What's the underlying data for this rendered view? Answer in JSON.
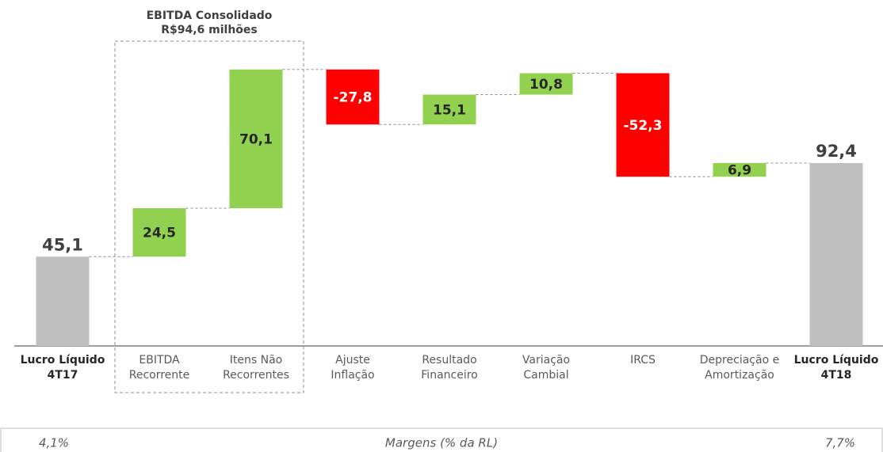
{
  "chart_data": {
    "type": "waterfall",
    "categories": [
      [
        "Lucro Líquido",
        "4T17"
      ],
      [
        "EBITDA",
        "Recorrente"
      ],
      [
        "Itens Não",
        "Recorrentes"
      ],
      [
        "Ajuste",
        "Inflação"
      ],
      [
        "Resultado",
        "Financeiro"
      ],
      [
        "Variação",
        "Cambial"
      ],
      [
        "IRCS"
      ],
      [
        "Depreciação e",
        "Amortização"
      ],
      [
        "Lucro Líquido",
        "4T18"
      ]
    ],
    "values": [
      45.1,
      24.5,
      70.1,
      -27.8,
      15.1,
      10.8,
      -52.3,
      6.9,
      92.4
    ],
    "value_labels": [
      "45,1",
      "24,5",
      "70,1",
      "-27,8",
      "15,1",
      "10,8",
      "-52,3",
      "6,9",
      "92,4"
    ],
    "colors": {
      "increase": "#92d050",
      "decrease": "#ff0000",
      "total": "#bfbfbf"
    },
    "annotation": {
      "title": "EBITDA Consolidado",
      "subtitle": "R$94,6 milhões"
    },
    "footer": {
      "left": "4,1%",
      "center": "Margens (% da RL)",
      "right": "7,7%"
    }
  }
}
